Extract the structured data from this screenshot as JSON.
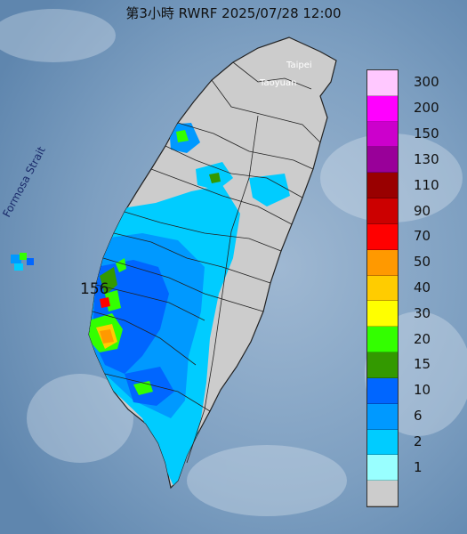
{
  "title": "第3小時  RWRF 2025/07/28 12:00",
  "map_labels": {
    "strait": "Formosa Strait",
    "taipei": "Taipei",
    "taoyuan": "Taoyuan",
    "max_value": "156"
  },
  "legend": [
    {
      "label": "300",
      "color": "#ffc8ff"
    },
    {
      "label": "200",
      "color": "#ff00ff"
    },
    {
      "label": "150",
      "color": "#cc00cc"
    },
    {
      "label": "130",
      "color": "#990099"
    },
    {
      "label": "110",
      "color": "#990000"
    },
    {
      "label": "90",
      "color": "#cc0000"
    },
    {
      "label": "70",
      "color": "#ff0000"
    },
    {
      "label": "50",
      "color": "#ff9900"
    },
    {
      "label": "40",
      "color": "#ffcc00"
    },
    {
      "label": "30",
      "color": "#ffff00"
    },
    {
      "label": "20",
      "color": "#33ff00"
    },
    {
      "label": "15",
      "color": "#339900"
    },
    {
      "label": "10",
      "color": "#0066ff"
    },
    {
      "label": "6",
      "color": "#0099ff"
    },
    {
      "label": "2",
      "color": "#00ccff"
    },
    {
      "label": "1",
      "color": "#99ffff"
    },
    {
      "label": "",
      "color": "#cccccc"
    }
  ],
  "colors": {
    "sea": "#6f94b8",
    "land": "#cccccc",
    "border": "#222222"
  }
}
